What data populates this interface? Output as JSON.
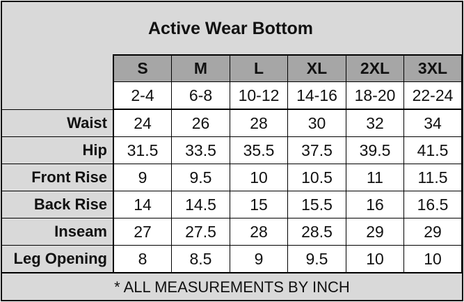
{
  "title": "Active Wear Bottom",
  "sizes": [
    "S",
    "M",
    "L",
    "XL",
    "2XL",
    "3XL"
  ],
  "ranges": [
    "2-4",
    "6-8",
    "10-12",
    "14-16",
    "18-20",
    "22-24"
  ],
  "rows": [
    {
      "label": "Waist",
      "values": [
        "24",
        "26",
        "28",
        "30",
        "32",
        "34"
      ]
    },
    {
      "label": "Hip",
      "values": [
        "31.5",
        "33.5",
        "35.5",
        "37.5",
        "39.5",
        "41.5"
      ]
    },
    {
      "label": "Front Rise",
      "values": [
        "9",
        "9.5",
        "10",
        "10.5",
        "11",
        "11.5"
      ]
    },
    {
      "label": "Back Rise",
      "values": [
        "14",
        "14.5",
        "15",
        "15.5",
        "16",
        "16.5"
      ]
    },
    {
      "label": "Inseam",
      "values": [
        "27",
        "27.5",
        "28",
        "28.5",
        "29",
        "29"
      ]
    },
    {
      "label": "Leg Opening",
      "values": [
        "8",
        "8.5",
        "9",
        "9.5",
        "10",
        "10"
      ]
    }
  ],
  "footnote": "* ALL MEASUREMENTS BY INCH",
  "colors": {
    "header_bg": "#a6a6a6",
    "label_bg": "#d9d9d9",
    "cell_bg": "#ffffff"
  }
}
